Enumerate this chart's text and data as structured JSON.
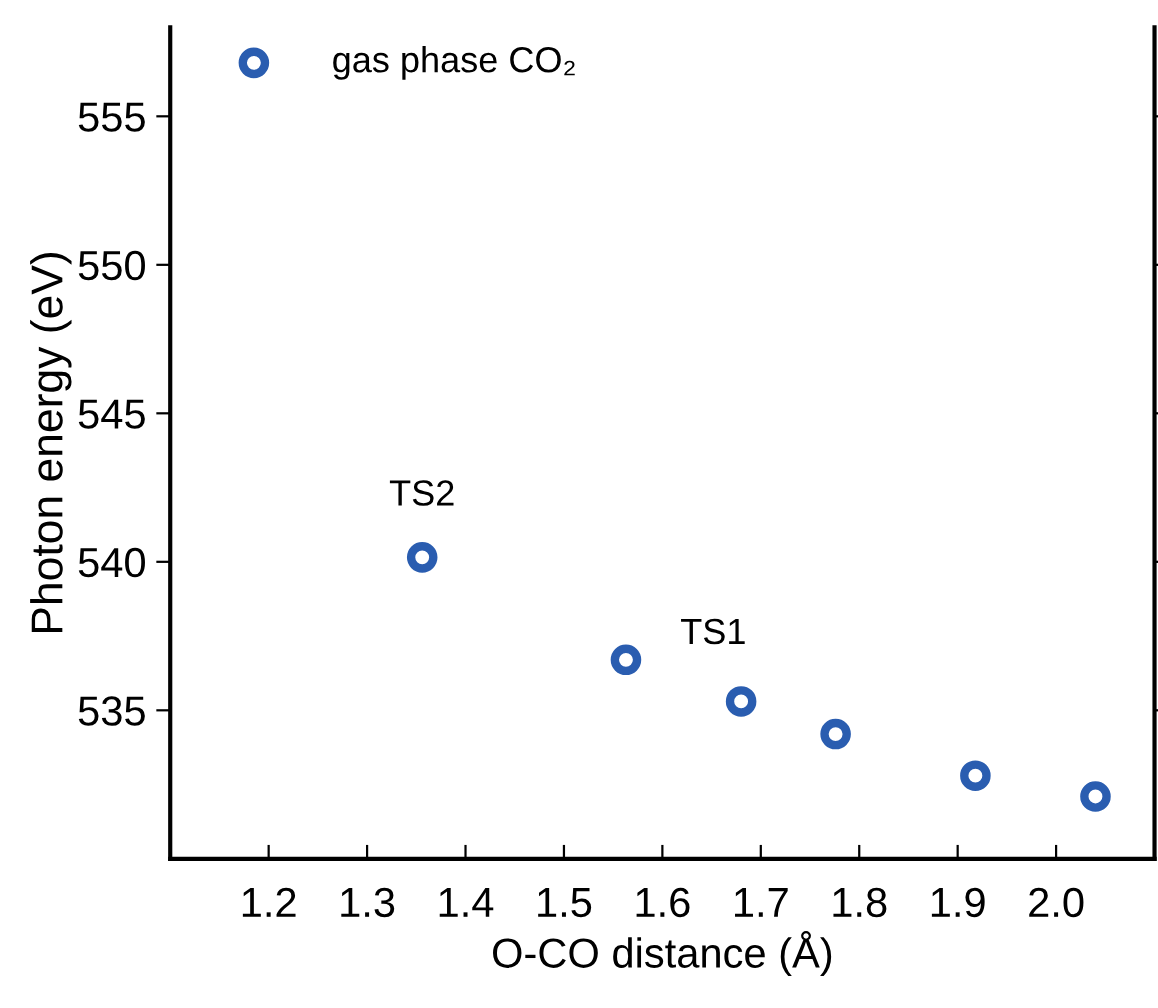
{
  "chart_data": {
    "type": "scatter",
    "xlabel": "O-CO distance (Å)",
    "ylabel": "Photon energy (eV)",
    "x": [
      1.185,
      1.356,
      1.563,
      1.68,
      1.776,
      1.918,
      2.04
    ],
    "series": [
      {
        "color": "#2a5db0",
        "values": [
          556.8,
          540.15,
          536.7,
          535.3,
          534.2,
          532.8,
          532.1
        ]
      }
    ],
    "xlim": [
      1.1,
      2.1
    ],
    "xticks": [
      1.2,
      1.3,
      1.4,
      1.5,
      1.6,
      1.7,
      1.8,
      1.9,
      {
        "value": 2.0,
        "label": "2.0"
      }
    ],
    "ylim": [
      530,
      558
    ],
    "yticks": [
      535,
      540,
      545,
      550,
      555
    ],
    "marker": "circle",
    "grid": false,
    "legend": false,
    "annotations": [
      {
        "text": "gas phase CO₂",
        "x": 1.185,
        "y": 556.8
      },
      {
        "text": "TS2",
        "x": 1.356,
        "y": 540.15
      },
      {
        "text": "TS1",
        "x": 1.68,
        "y": 535.3
      }
    ]
  }
}
